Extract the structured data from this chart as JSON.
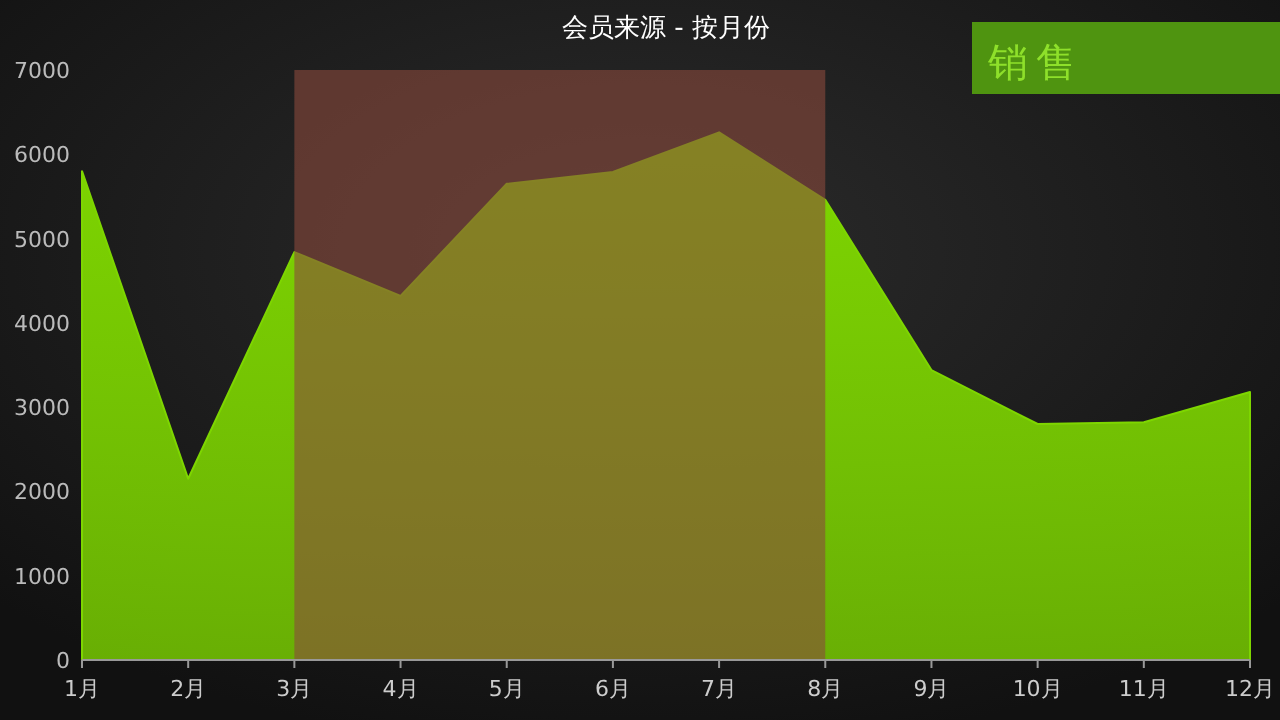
{
  "chart_data": {
    "type": "area",
    "title": "会员来源 - 按月份",
    "categories": [
      "1月",
      "2月",
      "3月",
      "4月",
      "5月",
      "6月",
      "7月",
      "8月",
      "9月",
      "10月",
      "11月",
      "12月"
    ],
    "series": [
      {
        "color": "#7ed600",
        "values": [
          5800,
          2150,
          4840,
          4320,
          5650,
          5790,
          6260,
          5460,
          3440,
          2800,
          2820,
          3180
        ]
      }
    ],
    "ylim": [
      0,
      7000
    ],
    "yticks": [
      0,
      1000,
      2000,
      3000,
      4000,
      5000,
      6000,
      7000
    ],
    "bands": [
      {
        "axis": "x",
        "from": "3月",
        "to": "8月",
        "color": "#8a4a3c"
      }
    ],
    "annotations": [
      "销售"
    ],
    "grid": false
  }
}
